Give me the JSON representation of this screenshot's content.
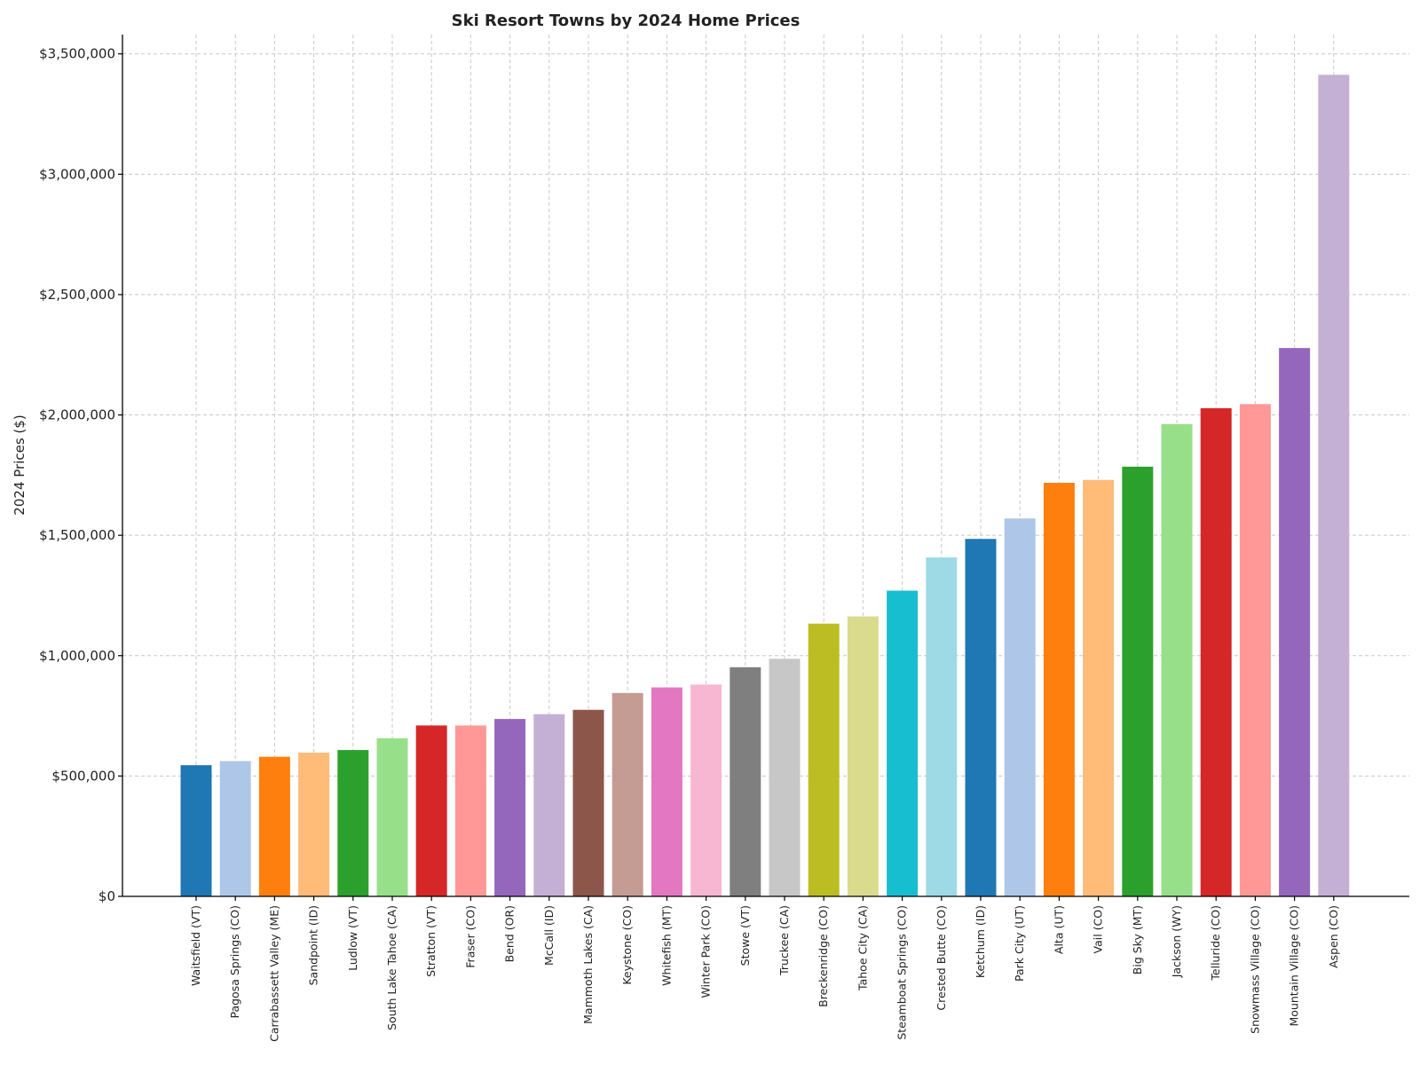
{
  "chart_data": {
    "type": "bar",
    "title": "Ski Resort Towns by 2024 Home Prices",
    "xlabel": "",
    "ylabel": "2024 Prices ($)",
    "ylim": [
      0,
      3580000
    ],
    "yticks": [
      0,
      500000,
      1000000,
      1500000,
      2000000,
      2500000,
      3000000,
      3500000
    ],
    "ytick_labels": [
      "$0",
      "$500,000",
      "$1,000,000",
      "$1,500,000",
      "$2,000,000",
      "$2,500,000",
      "$3,000,000",
      "$3,500,000"
    ],
    "grid": true,
    "categories": [
      "Waitsfield (VT)",
      "Pagosa Springs (CO)",
      "Carrabassett Valley (ME)",
      "Sandpoint (ID)",
      "Ludlow (VT)",
      "South Lake Tahoe (CA)",
      "Stratton (VT)",
      "Fraser (CO)",
      "Bend (OR)",
      "McCall (ID)",
      "Mammoth Lakes (CA)",
      "Keystone (CO)",
      "Whitefish (MT)",
      "Winter Park (CO)",
      "Stowe (VT)",
      "Truckee (CA)",
      "Breckenridge (CO)",
      "Tahoe City (CA)",
      "Steamboat Springs (CO)",
      "Crested Butte (CO)",
      "Ketchum (ID)",
      "Park City (UT)",
      "Alta (UT)",
      "Vail (CO)",
      "Big Sky (MT)",
      "Jackson (WY)",
      "Telluride (CO)",
      "Snowmass Village (CO)",
      "Mountain Village (CO)",
      "Aspen (CO)"
    ],
    "values": [
      545000,
      562000,
      580000,
      597000,
      608000,
      657000,
      710000,
      710000,
      737000,
      757000,
      775000,
      845000,
      868000,
      880000,
      952000,
      987000,
      1133000,
      1163000,
      1270000,
      1408000,
      1485000,
      1570000,
      1718000,
      1730000,
      1785000,
      1962000,
      2028000,
      2045000,
      2278000,
      3413000
    ],
    "colors": [
      "#1f77b4",
      "#aec7e8",
      "#ff7f0e",
      "#ffbb78",
      "#2ca02c",
      "#98df8a",
      "#d62728",
      "#ff9896",
      "#9467bd",
      "#c5b0d5",
      "#8c564b",
      "#c49c94",
      "#e377c2",
      "#f7b6d2",
      "#7f7f7f",
      "#c7c7c7",
      "#bcbd22",
      "#dbdb8d",
      "#17becf",
      "#9edae5",
      "#1f77b4",
      "#aec7e8",
      "#ff7f0e",
      "#ffbb78",
      "#2ca02c",
      "#98df8a",
      "#d62728",
      "#ff9896",
      "#9467bd",
      "#c5b0d5"
    ]
  }
}
